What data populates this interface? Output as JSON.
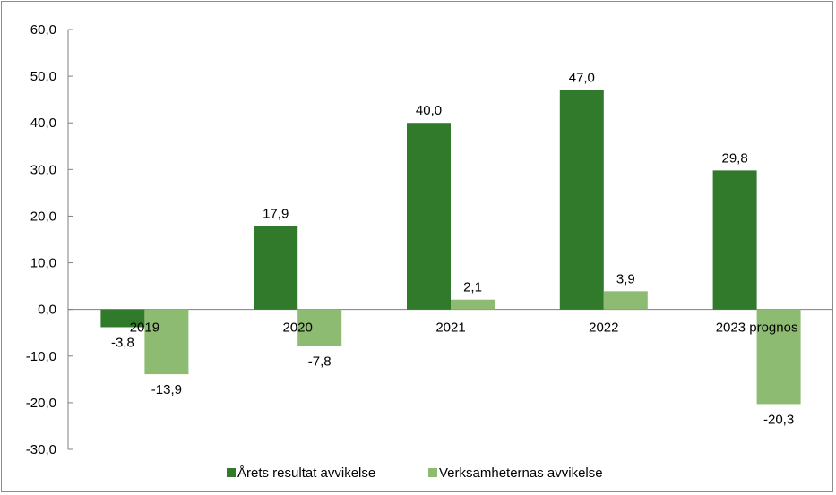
{
  "chart_data": {
    "type": "bar",
    "categories": [
      "2019",
      "2020",
      "2021",
      "2022",
      "2023 prognos"
    ],
    "series": [
      {
        "name": "Årets resultat avvikelse",
        "values": [
          -3.8,
          17.9,
          40.0,
          47.0,
          29.8
        ],
        "labels": [
          "-3,8",
          "17,9",
          "40,0",
          "47,0",
          "29,8"
        ],
        "color": "#317a2c"
      },
      {
        "name": "Verksamheternas avvikelse",
        "values": [
          -13.9,
          -7.8,
          2.1,
          3.9,
          -20.3
        ],
        "labels": [
          "-13,9",
          "-7,8",
          "2,1",
          "3,9",
          "-20,3"
        ],
        "color": "#8dbb72"
      }
    ],
    "ylim": [
      -30,
      60
    ],
    "yticks": [
      60,
      50,
      40,
      30,
      20,
      10,
      0,
      -10,
      -20,
      -30
    ],
    "ytick_labels": [
      "60,0",
      "50,0",
      "40,0",
      "30,0",
      "20,0",
      "10,0",
      "0,0",
      "-10,0",
      "-20,0",
      "-30,0"
    ],
    "legend_position": "bottom",
    "grid": false
  }
}
